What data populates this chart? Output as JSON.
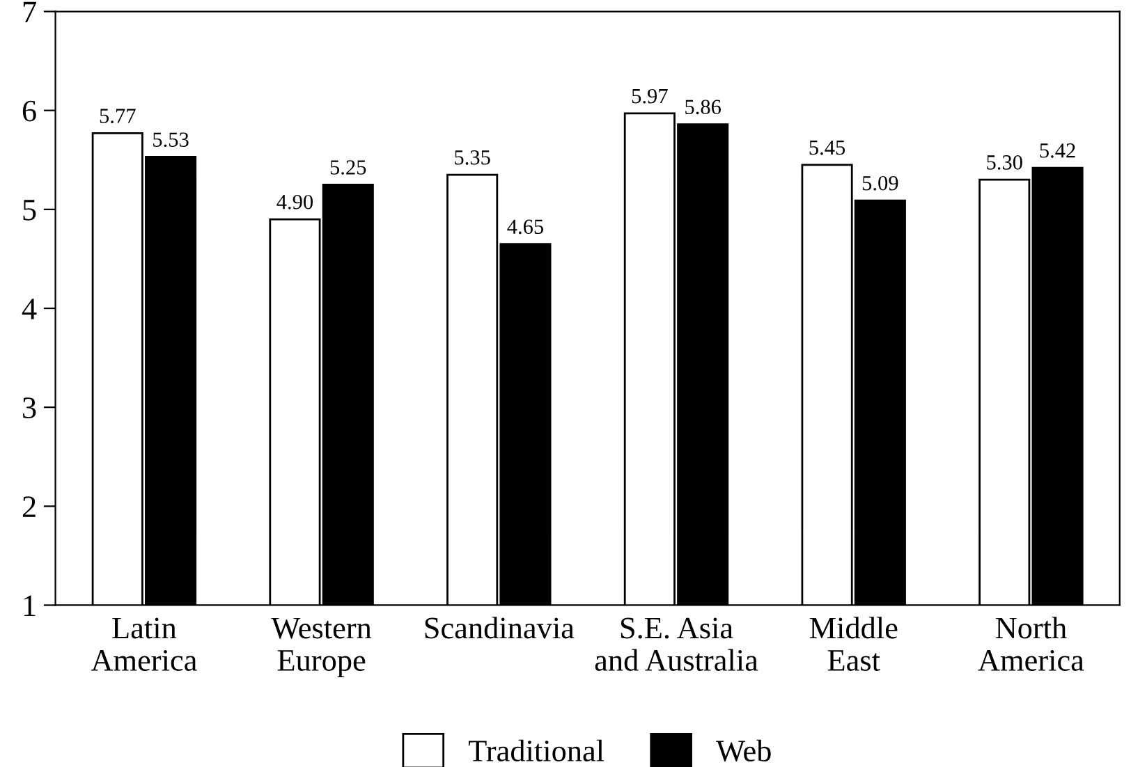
{
  "chart_data": {
    "type": "bar",
    "categories": [
      "Latin\nAmerica",
      "Western\nEurope",
      "Scandinavia",
      "S.E. Asia\nand Australia",
      "Middle\nEast",
      "North\nAmerica"
    ],
    "series": [
      {
        "name": "Traditional",
        "color": "#ffffff",
        "values": [
          5.77,
          4.9,
          5.35,
          5.97,
          5.45,
          5.3
        ],
        "value_labels": [
          "5.77",
          "4.90",
          "5.35",
          "5.97",
          "5.45",
          "5.30"
        ]
      },
      {
        "name": "Web",
        "color": "#000000",
        "values": [
          5.53,
          5.25,
          4.65,
          5.86,
          5.09,
          5.42
        ],
        "value_labels": [
          "5.53",
          "5.25",
          "4.65",
          "5.86",
          "5.09",
          "5.42"
        ]
      }
    ],
    "ylim": [
      1,
      7
    ],
    "yticks": [
      1,
      2,
      3,
      4,
      5,
      6,
      7
    ],
    "grid": false,
    "legend": "bottom"
  }
}
